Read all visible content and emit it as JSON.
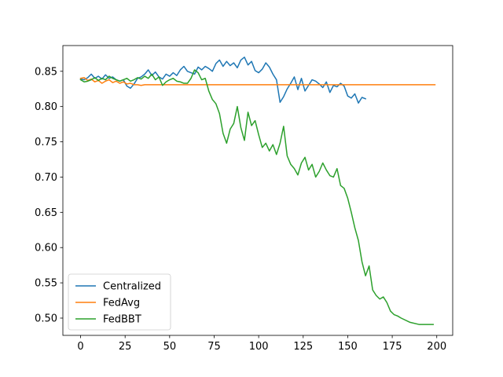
{
  "chart_data": {
    "type": "line",
    "title": "",
    "xlabel": "",
    "ylabel": "",
    "xlim": [
      -9.95,
      208.95
    ],
    "ylim": [
      0.4755,
      0.8865
    ],
    "xticks": [
      0,
      25,
      50,
      75,
      100,
      125,
      150,
      175,
      200
    ],
    "xtick_labels": [
      "0",
      "25",
      "50",
      "75",
      "100",
      "125",
      "150",
      "175",
      "200"
    ],
    "yticks": [
      0.5,
      0.55,
      0.6,
      0.65,
      0.7,
      0.75,
      0.8,
      0.85
    ],
    "ytick_labels": [
      "0.50",
      "0.55",
      "0.60",
      "0.65",
      "0.70",
      "0.75",
      "0.80",
      "0.85"
    ],
    "grid": false,
    "legend_position": "lower-left",
    "series": [
      {
        "name": "Centralized",
        "color": "#1f77b4",
        "x": [
          0,
          2,
          4,
          6,
          8,
          10,
          12,
          14,
          16,
          18,
          20,
          22,
          24,
          26,
          28,
          30,
          32,
          34,
          36,
          38,
          40,
          42,
          44,
          46,
          48,
          50,
          52,
          54,
          56,
          58,
          60,
          62,
          64,
          66,
          68,
          70,
          72,
          74,
          76,
          78,
          80,
          82,
          84,
          86,
          88,
          90,
          92,
          94,
          96,
          98,
          100,
          102,
          104,
          106,
          108,
          110,
          112,
          114,
          116,
          118,
          120,
          122,
          124,
          126,
          128,
          130,
          132,
          134,
          136,
          138,
          140,
          142,
          144,
          146,
          148,
          150,
          152,
          154,
          156,
          158,
          160
        ],
        "y": [
          0.839,
          0.838,
          0.841,
          0.846,
          0.84,
          0.843,
          0.839,
          0.845,
          0.84,
          0.842,
          0.838,
          0.836,
          0.838,
          0.829,
          0.826,
          0.832,
          0.84,
          0.842,
          0.846,
          0.852,
          0.844,
          0.849,
          0.842,
          0.839,
          0.846,
          0.843,
          0.848,
          0.844,
          0.852,
          0.857,
          0.85,
          0.848,
          0.846,
          0.856,
          0.852,
          0.857,
          0.854,
          0.85,
          0.861,
          0.866,
          0.857,
          0.864,
          0.858,
          0.862,
          0.855,
          0.866,
          0.87,
          0.859,
          0.864,
          0.851,
          0.848,
          0.853,
          0.862,
          0.856,
          0.846,
          0.838,
          0.806,
          0.814,
          0.825,
          0.833,
          0.842,
          0.824,
          0.84,
          0.822,
          0.83,
          0.838,
          0.836,
          0.832,
          0.827,
          0.835,
          0.82,
          0.83,
          0.828,
          0.833,
          0.829,
          0.815,
          0.812,
          0.818,
          0.805,
          0.813,
          0.811
        ]
      },
      {
        "name": "FedAvg",
        "color": "#ff7f0e",
        "x": [
          0,
          2,
          4,
          6,
          8,
          10,
          12,
          14,
          16,
          18,
          20,
          22,
          24,
          26,
          28,
          30,
          32,
          34,
          36,
          40,
          50,
          60,
          80,
          100,
          120,
          140,
          160,
          180,
          199
        ],
        "y": [
          0.84,
          0.841,
          0.837,
          0.839,
          0.835,
          0.837,
          0.833,
          0.836,
          0.838,
          0.834,
          0.836,
          0.833,
          0.835,
          0.832,
          0.833,
          0.831,
          0.831,
          0.83,
          0.831,
          0.831,
          0.831,
          0.831,
          0.831,
          0.831,
          0.831,
          0.831,
          0.831,
          0.831,
          0.831
        ]
      },
      {
        "name": "FedBBT",
        "color": "#2ca02c",
        "x": [
          0,
          2,
          4,
          6,
          8,
          10,
          12,
          14,
          16,
          18,
          20,
          22,
          24,
          26,
          28,
          30,
          32,
          34,
          36,
          38,
          40,
          42,
          44,
          46,
          48,
          50,
          52,
          54,
          56,
          58,
          60,
          62,
          64,
          66,
          68,
          70,
          72,
          74,
          76,
          78,
          80,
          82,
          84,
          86,
          88,
          90,
          92,
          94,
          96,
          98,
          100,
          102,
          104,
          106,
          108,
          110,
          112,
          114,
          116,
          118,
          120,
          122,
          124,
          126,
          128,
          130,
          132,
          134,
          136,
          138,
          140,
          142,
          144,
          146,
          148,
          150,
          152,
          154,
          156,
          158,
          160,
          162,
          164,
          166,
          168,
          170,
          172,
          174,
          176,
          178,
          180,
          185,
          190,
          195,
          198
        ],
        "y": [
          0.838,
          0.835,
          0.836,
          0.838,
          0.841,
          0.837,
          0.84,
          0.838,
          0.843,
          0.84,
          0.838,
          0.836,
          0.838,
          0.84,
          0.836,
          0.838,
          0.841,
          0.839,
          0.843,
          0.84,
          0.846,
          0.838,
          0.842,
          0.83,
          0.835,
          0.838,
          0.84,
          0.836,
          0.835,
          0.833,
          0.833,
          0.84,
          0.852,
          0.848,
          0.838,
          0.84,
          0.822,
          0.81,
          0.804,
          0.79,
          0.762,
          0.748,
          0.768,
          0.776,
          0.8,
          0.77,
          0.752,
          0.792,
          0.773,
          0.78,
          0.76,
          0.742,
          0.748,
          0.737,
          0.746,
          0.732,
          0.748,
          0.772,
          0.73,
          0.718,
          0.712,
          0.703,
          0.72,
          0.728,
          0.71,
          0.718,
          0.7,
          0.708,
          0.72,
          0.71,
          0.702,
          0.7,
          0.712,
          0.688,
          0.684,
          0.67,
          0.65,
          0.628,
          0.61,
          0.58,
          0.56,
          0.574,
          0.54,
          0.532,
          0.527,
          0.53,
          0.522,
          0.51,
          0.505,
          0.503,
          0.5,
          0.494,
          0.491,
          0.491,
          0.491
        ]
      }
    ]
  }
}
